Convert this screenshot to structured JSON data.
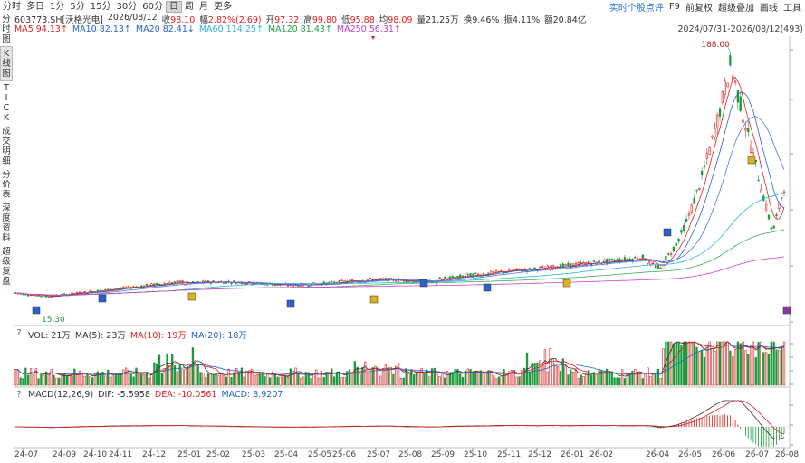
{
  "toolbar": {
    "periods": [
      "分时",
      "多日",
      "1分",
      "5分",
      "15分",
      "30分",
      "60分",
      "日",
      "周",
      "月",
      "更多"
    ],
    "active_period": "日",
    "right_items": [
      "实时个股点评",
      "F9",
      "前复权",
      "超级叠加",
      "画线",
      "工具"
    ]
  },
  "left_tabs": [
    "分时图",
    "K线图",
    "TICK",
    "成交明细",
    "分价表",
    "深度资料",
    "超级复盘"
  ],
  "active_left_tab": "K线图",
  "info": {
    "code": "603773.SH[沃格光电]",
    "date": "2026/08/12",
    "close_label": "收",
    "close": "98.10",
    "change_label": "幅",
    "change": "2.82%(2.69)",
    "open_label": "开",
    "open": "97.32",
    "high_label": "高",
    "high": "99.80",
    "low_label": "低",
    "low": "95.88",
    "avg_label": "均",
    "avg": "98.09",
    "volume_label": "量",
    "volume": "21.25万",
    "turnover_label": "换",
    "turnover": "9.46%",
    "amplitude_label": "振",
    "amplitude": "4.11%",
    "amount_label": "额",
    "amount": "20.84亿"
  },
  "ma": [
    {
      "label": "MA5",
      "value": "94.13↑",
      "color": "#e02020"
    },
    {
      "label": "MA10",
      "value": "82.13↑",
      "color": "#2a62c9"
    },
    {
      "label": "MA20",
      "value": "82.41↓",
      "color": "#2a62c9"
    },
    {
      "label": "MA60",
      "value": "114.25↑",
      "color": "#2bb5d8"
    },
    {
      "label": "MA120",
      "value": "81.43↑",
      "color": "#22a04a"
    },
    {
      "label": "MA250",
      "value": "56.31↑",
      "color": "#c040c0"
    }
  ],
  "range_label": "2024/07/31-2026/08/12(493)",
  "price_annotations": {
    "high": "188.00",
    "low": "15.30"
  },
  "vol": {
    "label": "VOL: 21万",
    "ma5": "MA(5): 23万",
    "ma10": "MA(10): 19万",
    "ma20": "MA(20): 18万"
  },
  "macd": {
    "label": "MACD(12,26,9)",
    "dif": "DIF: -5.5958",
    "dea": "DEA: -10.0561",
    "macd": "MACD: 8.9207"
  },
  "x_labels": [
    "24-07",
    "24-09",
    "24-10",
    "24-11",
    "24-12",
    "25-01",
    "25-02",
    "25-03",
    "25-04",
    "25-05",
    "25-06",
    "25-07",
    "25-08",
    "25-09",
    "25-10",
    "25-11",
    "25-12",
    "26-01",
    "26-02",
    "26-04",
    "26-05",
    "26-06",
    "26-07",
    "26-08"
  ],
  "colors": {
    "up": "#e02020",
    "down": "#1a9a3a",
    "grid": "#e4e4e4",
    "ma250": "#d040d0",
    "ma120": "#3fae4f"
  }
}
